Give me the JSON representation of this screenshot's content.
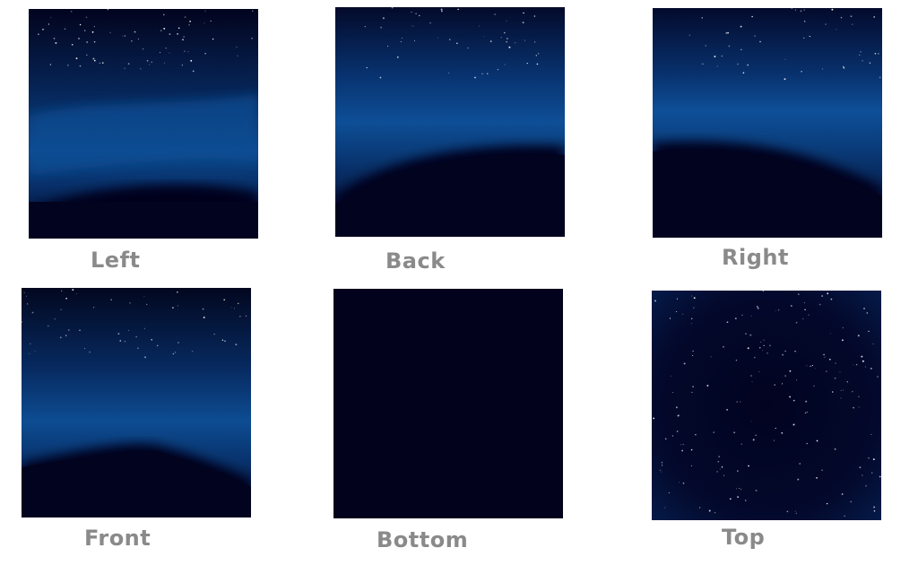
{
  "faces": [
    {
      "key": "left",
      "label": "Left"
    },
    {
      "key": "back",
      "label": "Back"
    },
    {
      "key": "right",
      "label": "Right"
    },
    {
      "key": "front",
      "label": "Front"
    },
    {
      "key": "bottom",
      "label": "Bottom"
    },
    {
      "key": "top",
      "label": "Top"
    }
  ],
  "colors": {
    "label_text": "#8a8a8a",
    "space_dark": "#02021a",
    "space_mid": "#04133a",
    "glow_blue": "#0d4a8f",
    "star": "#ffffff"
  }
}
